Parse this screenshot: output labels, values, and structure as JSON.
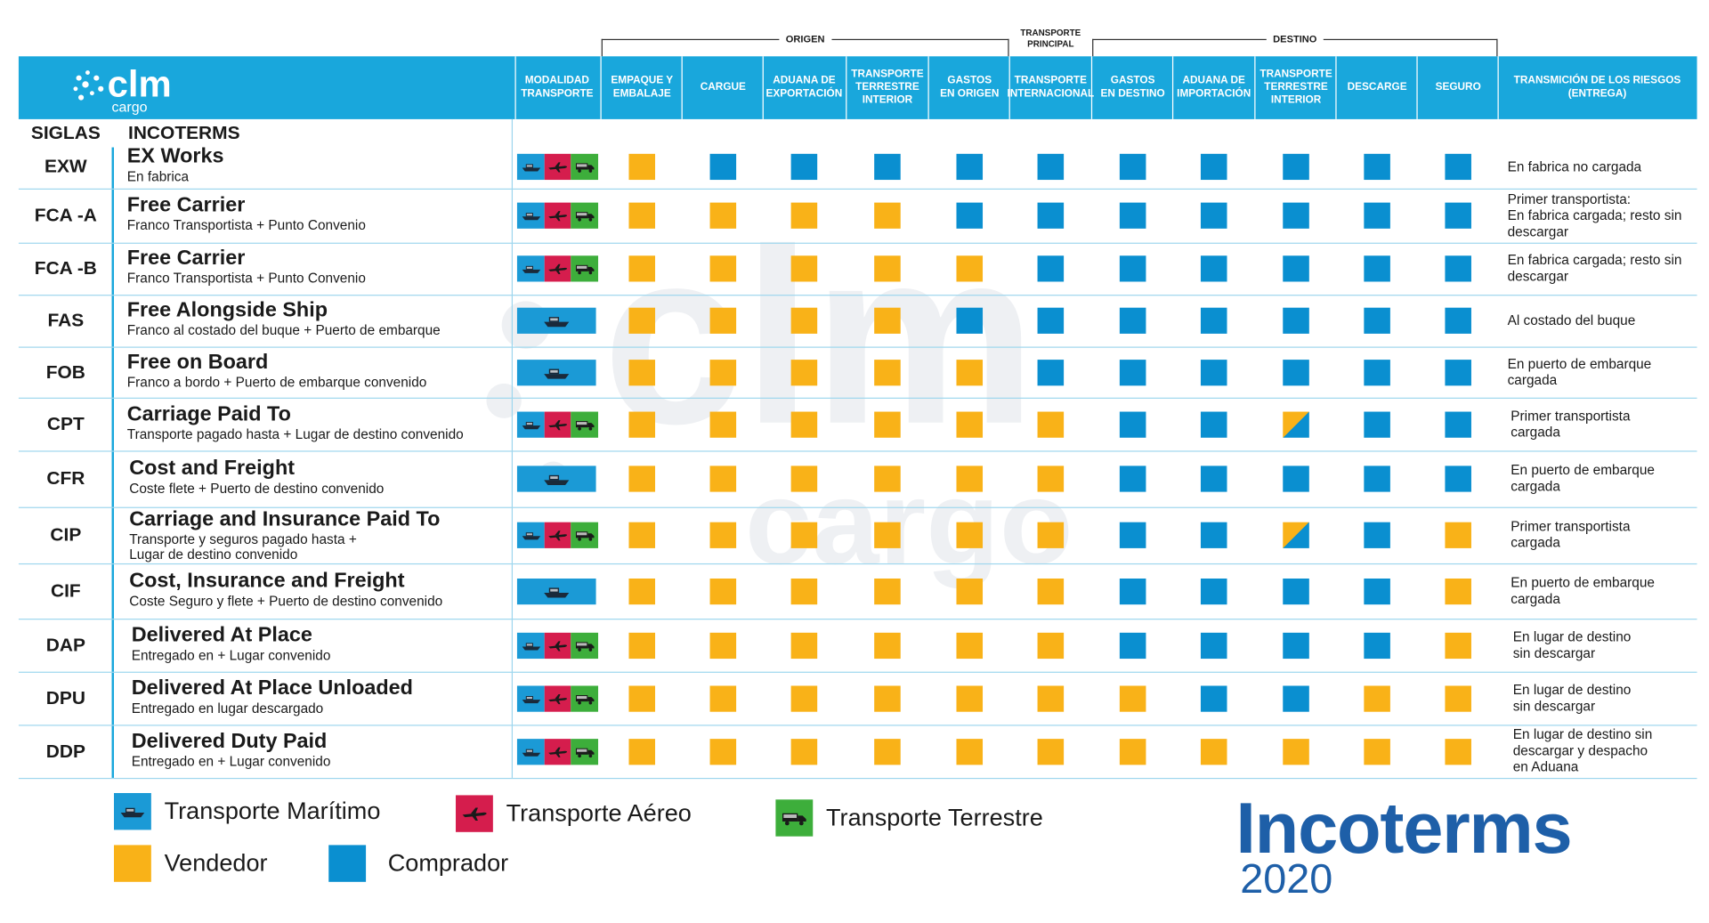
{
  "colors": {
    "header": "#19a7dc",
    "vendedor": "#f9b218",
    "comprador": "#0a8fd0",
    "maritimo": "#1b9ad6",
    "aereo": "#d51d4d",
    "terrestre": "#3dae3b",
    "brand_blue": "#1e5fa8"
  },
  "logo": {
    "text": "clm",
    "subtext": "cargo"
  },
  "groups": {
    "origen": "ORIGEN",
    "principal": "TRANSPORTE\nPRINCIPAL",
    "destino": "DESTINO"
  },
  "headers": {
    "modalidad": "MODALIDAD\nTRANSPORTE",
    "columns": [
      "EMPAQUE Y\nEMBALAJE",
      "CARGUE",
      "ADUANA DE\nEXPORTACIÓN",
      "TRANSPORTE\nTERRESTRE\nINTERIOR",
      "GASTOS\nEN ORIGEN",
      "TRANSPORTE\nINTERNACIONAL",
      "GASTOS\nEN DESTINO",
      "ADUANA DE\nIMPORTACIÓN",
      "TRANSPORTE\nTERRESTRE\nINTERIOR",
      "DESCARGE",
      "SEGURO"
    ],
    "riesgos": "TRANSMICIÓN DE LOS RIESGOS\n(ENTREGA)"
  },
  "col_titles": {
    "siglas": "SIGLAS",
    "incoterms": "INCOTERMS"
  },
  "rows": [
    {
      "sigla": "EXW",
      "name": "EX Works",
      "sub": "En fabrica",
      "modes": "all",
      "cells": [
        "V",
        "C",
        "C",
        "C",
        "C",
        "C",
        "C",
        "C",
        "C",
        "C",
        "C"
      ],
      "risk": "En fabrica no cargada"
    },
    {
      "sigla": "FCA -A",
      "name": "Free Carrier",
      "sub": "Franco Transportista + Punto Convenio",
      "modes": "all",
      "cells": [
        "V",
        "V",
        "V",
        "V",
        "C",
        "C",
        "C",
        "C",
        "C",
        "C",
        "C"
      ],
      "risk": "Primer transportista:\nEn fabrica cargada; resto sin\ndescargar"
    },
    {
      "sigla": "FCA -B",
      "name": "Free Carrier",
      "sub": "Franco Transportista + Punto Convenio",
      "modes": "all",
      "cells": [
        "V",
        "V",
        "V",
        "V",
        "V",
        "C",
        "C",
        "C",
        "C",
        "C",
        "C"
      ],
      "risk": "En fabrica cargada; resto sin\ndescargar"
    },
    {
      "sigla": "FAS",
      "name": "Free Alongside Ship",
      "sub": "Franco al costado del buque + Puerto de embarque",
      "modes": "sea",
      "cells": [
        "V",
        "V",
        "V",
        "V",
        "C",
        "C",
        "C",
        "C",
        "C",
        "C",
        "C"
      ],
      "risk": "Al costado del buque"
    },
    {
      "sigla": "FOB",
      "name": "Free on Board",
      "sub": "Franco a bordo + Puerto de embarque convenido",
      "modes": "sea",
      "cells": [
        "V",
        "V",
        "V",
        "V",
        "V",
        "C",
        "C",
        "C",
        "C",
        "C",
        "C"
      ],
      "risk": "En puerto de embarque\ncargada"
    },
    {
      "sigla": "CPT",
      "name": "Carriage Paid To",
      "sub": "Transporte pagado hasta + Lugar de destino convenido",
      "modes": "all",
      "cells": [
        "V",
        "V",
        "V",
        "V",
        "V",
        "V",
        "C",
        "C",
        "S",
        "C",
        "C"
      ],
      "risk": "Primer transportista\ncargada"
    },
    {
      "sigla": "CFR",
      "name": "Cost and Freight",
      "sub": "Coste flete + Puerto de destino convenido",
      "modes": "sea",
      "cells": [
        "V",
        "V",
        "V",
        "V",
        "V",
        "V",
        "C",
        "C",
        "C",
        "C",
        "C"
      ],
      "risk": "En puerto de embarque\ncargada"
    },
    {
      "sigla": "CIP",
      "name": "Carriage and Insurance Paid To",
      "sub": "Transporte y seguros pagado hasta +\n Lugar de destino convenido",
      "modes": "all",
      "cells": [
        "V",
        "V",
        "V",
        "V",
        "V",
        "V",
        "C",
        "C",
        "S",
        "C",
        "V"
      ],
      "risk": "Primer transportista\ncargada"
    },
    {
      "sigla": "CIF",
      "name": "Cost, Insurance and Freight",
      "sub": "Coste Seguro y flete + Puerto de destino convenido",
      "modes": "sea",
      "cells": [
        "V",
        "V",
        "V",
        "V",
        "V",
        "V",
        "C",
        "C",
        "C",
        "C",
        "V"
      ],
      "risk": "En puerto de embarque\ncargada"
    },
    {
      "sigla": "DAP",
      "name": "Delivered At Place",
      "sub": "Entregado en + Lugar convenido",
      "modes": "all",
      "cells": [
        "V",
        "V",
        "V",
        "V",
        "V",
        "V",
        "C",
        "C",
        "C",
        "C",
        "V"
      ],
      "risk": "En lugar de destino\nsin descargar"
    },
    {
      "sigla": "DPU",
      "name": "Delivered At Place Unloaded",
      "sub": "Entregado en lugar descargado",
      "modes": "all",
      "cells": [
        "V",
        "V",
        "V",
        "V",
        "V",
        "V",
        "V",
        "C",
        "C",
        "V",
        "V"
      ],
      "risk": "En lugar de destino\nsin descargar"
    },
    {
      "sigla": "DDP",
      "name": "Delivered Duty Paid",
      "sub": "Entregado en + Lugar convenido",
      "modes": "all",
      "cells": [
        "V",
        "V",
        "V",
        "V",
        "V",
        "V",
        "V",
        "V",
        "V",
        "V",
        "V"
      ],
      "risk": "En lugar de destino sin\ndescargar y despacho\nen Aduana"
    }
  ],
  "legend": {
    "maritimo": "Transporte Marítimo",
    "aereo": "Transporte Aéreo",
    "terrestre": "Transporte Terrestre",
    "vendedor": "Vendedor",
    "comprador": "Comprador"
  },
  "brand": {
    "word": "Incoterms",
    "year": "2020"
  }
}
